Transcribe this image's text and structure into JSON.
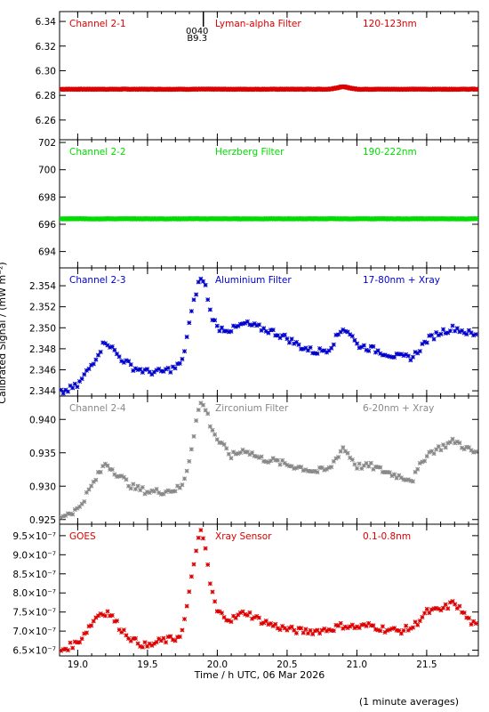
{
  "chart_data": {
    "type": "scatter",
    "x_label": "Time / h UTC, 06 Mar 2026",
    "y_label": "Calibrated Signal / (mW m⁻²)",
    "footnote": "(1 minute averages)",
    "x_range": [
      18.87,
      21.87
    ],
    "x_ticks": [
      19.0,
      19.5,
      20.0,
      20.5,
      21.0,
      21.5
    ],
    "x_tick_labels": [
      "19.0",
      "19.5",
      "20.0",
      "20.5",
      "21.0",
      "21.5"
    ],
    "event_marker": {
      "x": 19.9,
      "labels": [
        "0040",
        "B9.3"
      ]
    },
    "panels": [
      {
        "channel": "Channel 2-1",
        "filter": "Lyman-alpha Filter",
        "band": "120-123nm",
        "color": "#dd0000",
        "ylim": [
          6.244,
          6.348
        ],
        "y_ticks": [
          6.26,
          6.28,
          6.3,
          6.32,
          6.34
        ],
        "y_tick_labels": [
          "6.26",
          "6.28",
          "6.30",
          "6.32",
          "6.34"
        ],
        "series": {
          "x": [
            18.88,
            19.5,
            20.0,
            20.5,
            20.8,
            20.9,
            20.95,
            21.0,
            21.5,
            21.86
          ],
          "y": [
            6.285,
            6.285,
            6.285,
            6.285,
            6.285,
            6.287,
            6.286,
            6.285,
            6.285,
            6.285
          ]
        }
      },
      {
        "channel": "Channel 2-2",
        "filter": "Herzberg Filter",
        "band": "190-222nm",
        "color": "#00dd00",
        "ylim": [
          692.8,
          702.2
        ],
        "y_ticks": [
          694,
          696,
          698,
          700,
          702
        ],
        "y_tick_labels": [
          "694",
          "696",
          "698",
          "700",
          "702"
        ],
        "series": {
          "x": [
            18.88,
            19.5,
            20.0,
            20.5,
            21.0,
            21.5,
            21.86
          ],
          "y": [
            696.4,
            696.4,
            696.4,
            696.4,
            696.4,
            696.4,
            696.4
          ]
        }
      },
      {
        "channel": "Channel 2-3",
        "filter": "Aluminium Filter",
        "band": "17-80nm + Xray",
        "color": "#0000cc",
        "ylim": [
          2.3435,
          2.3557
        ],
        "y_ticks": [
          2.344,
          2.346,
          2.348,
          2.35,
          2.352,
          2.354
        ],
        "y_tick_labels": [
          "2.344",
          "2.346",
          "2.348",
          "2.350",
          "2.352",
          "2.354"
        ],
        "series": {
          "x": [
            18.88,
            19.0,
            19.1,
            19.2,
            19.3,
            19.4,
            19.5,
            19.6,
            19.7,
            19.75,
            19.8,
            19.85,
            19.88,
            19.92,
            19.95,
            20.0,
            20.1,
            20.2,
            20.3,
            20.4,
            20.5,
            20.6,
            20.7,
            20.8,
            20.9,
            20.95,
            21.0,
            21.1,
            21.2,
            21.3,
            21.4,
            21.5,
            21.6,
            21.7,
            21.8,
            21.86
          ],
          "y": [
            2.3438,
            2.3445,
            2.3465,
            2.3488,
            2.3472,
            2.3462,
            2.3458,
            2.3458,
            2.3462,
            2.3468,
            2.3505,
            2.3535,
            2.3548,
            2.3538,
            2.3515,
            2.35,
            2.3498,
            2.3504,
            2.35,
            2.3496,
            2.349,
            2.3482,
            2.3477,
            2.348,
            2.35,
            2.3495,
            2.3484,
            2.348,
            2.3476,
            2.3472,
            2.3472,
            2.3488,
            2.3496,
            2.35,
            2.3495,
            2.3492
          ]
        }
      },
      {
        "channel": "Channel 2-4",
        "filter": "Zirconium Filter",
        "band": "6-20nm + Xray",
        "color": "#888888",
        "ylim": [
          0.9243,
          0.9435
        ],
        "y_ticks": [
          0.925,
          0.93,
          0.935,
          0.94
        ],
        "y_tick_labels": [
          "0.925",
          "0.930",
          "0.935",
          "0.940"
        ],
        "series": {
          "x": [
            18.88,
            19.0,
            19.1,
            19.2,
            19.3,
            19.4,
            19.5,
            19.6,
            19.7,
            19.75,
            19.8,
            19.85,
            19.88,
            19.92,
            19.95,
            20.0,
            20.1,
            20.2,
            20.3,
            20.4,
            20.5,
            20.6,
            20.7,
            20.8,
            20.9,
            20.95,
            21.0,
            21.1,
            21.2,
            21.3,
            21.4,
            21.5,
            21.6,
            21.7,
            21.8,
            21.86
          ],
          "y": [
            0.9255,
            0.9265,
            0.93,
            0.9335,
            0.9315,
            0.9298,
            0.9292,
            0.9292,
            0.9295,
            0.93,
            0.934,
            0.94,
            0.9425,
            0.9415,
            0.9392,
            0.937,
            0.9345,
            0.9355,
            0.9342,
            0.9338,
            0.9332,
            0.9328,
            0.9322,
            0.9325,
            0.9358,
            0.9345,
            0.933,
            0.933,
            0.9322,
            0.9315,
            0.931,
            0.9348,
            0.9358,
            0.9368,
            0.9355,
            0.9348
          ]
        }
      },
      {
        "channel": "GOES",
        "filter": "Xray Sensor",
        "band": "0.1-0.8nm",
        "color": "#dd0000",
        "ylim": [
          6.35e-07,
          9.8e-07
        ],
        "y_ticks": [
          6.5e-07,
          7e-07,
          7.5e-07,
          8e-07,
          8.5e-07,
          9e-07,
          9.5e-07
        ],
        "y_tick_labels": [
          "6.5×10⁻⁷",
          "7.0×10⁻⁷",
          "7.5×10⁻⁷",
          "8.0×10⁻⁷",
          "8.5×10⁻⁷",
          "9.0×10⁻⁷",
          "9.5×10⁻⁷"
        ],
        "series": {
          "x": [
            18.88,
            19.0,
            19.1,
            19.15,
            19.22,
            19.3,
            19.4,
            19.5,
            19.6,
            19.7,
            19.75,
            19.8,
            19.85,
            19.88,
            19.92,
            19.95,
            20.0,
            20.1,
            20.2,
            20.3,
            20.4,
            20.5,
            20.6,
            20.7,
            20.8,
            20.9,
            21.0,
            21.1,
            21.2,
            21.3,
            21.4,
            21.5,
            21.6,
            21.7,
            21.8,
            21.86
          ],
          "y": [
            6.5e-07,
            6.7e-07,
            7.2e-07,
            7.45e-07,
            7.5e-07,
            7.1e-07,
            6.75e-07,
            6.6e-07,
            6.75e-07,
            6.8e-07,
            7e-07,
            8e-07,
            9.2e-07,
            9.6e-07,
            9.1e-07,
            8.2e-07,
            7.5e-07,
            7.3e-07,
            7.5e-07,
            7.3e-07,
            7.15e-07,
            7.05e-07,
            7e-07,
            7e-07,
            7.05e-07,
            7.15e-07,
            7.1e-07,
            7.15e-07,
            7.05e-07,
            7e-07,
            7.1e-07,
            7.5e-07,
            7.55e-07,
            7.75e-07,
            7.3e-07,
            7.1e-07
          ]
        }
      }
    ]
  }
}
